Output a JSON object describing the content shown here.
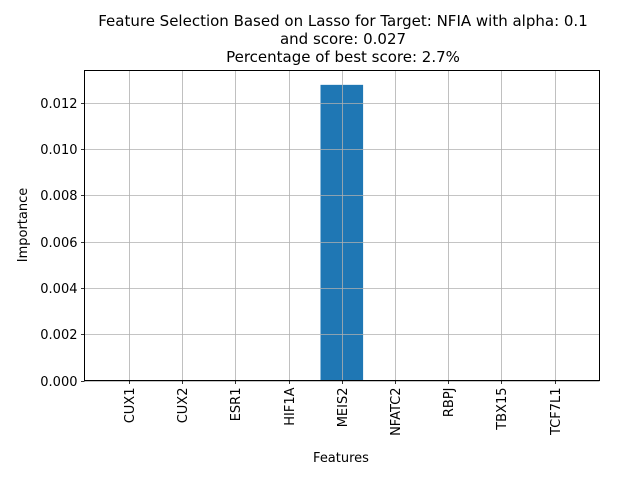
{
  "chart_data": {
    "type": "bar",
    "title_lines": [
      "Feature Selection Based on Lasso for Target: NFIA with alpha: 0.1",
      "and score: 0.027",
      "Percentage of best score: 2.7%"
    ],
    "xlabel": "Features",
    "ylabel": "Importance",
    "categories": [
      "CUX1",
      "CUX2",
      "ESR1",
      "HIF1A",
      "MEIS2",
      "NFATC2",
      "RBPJ",
      "TBX15",
      "TCF7L1"
    ],
    "values": [
      0,
      0,
      0,
      0,
      0.01278,
      0,
      0,
      0,
      0
    ],
    "ylim": [
      0,
      0.0134
    ],
    "yticks": [
      "0.000",
      "0.002",
      "0.004",
      "0.006",
      "0.008",
      "0.010",
      "0.012"
    ],
    "grid": true,
    "bar_color": "#1f77b4",
    "grid_color": "#b0b0b0"
  }
}
